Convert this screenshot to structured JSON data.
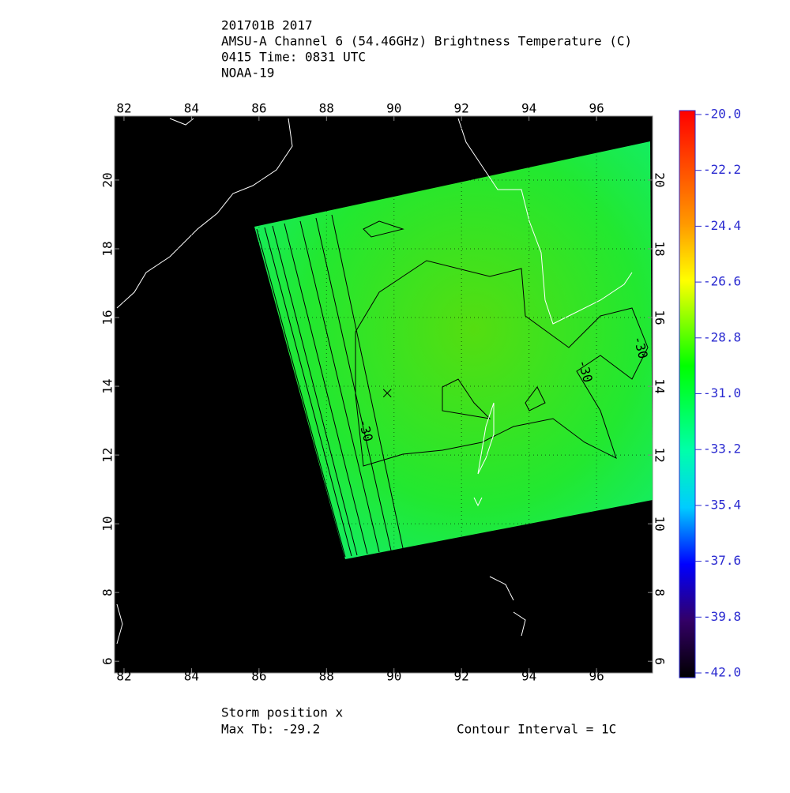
{
  "header": {
    "lines": [
      "201701B 2017",
      "AMSU-A Channel 6 (54.46GHz) Brightness Temperature (C)",
      "0415 Time: 0831 UTC",
      "NOAA-19"
    ]
  },
  "map": {
    "xlim": [
      81.72,
      97.66
    ],
    "ylim": [
      5.66,
      21.86
    ],
    "xticks": [
      82,
      84,
      86,
      88,
      90,
      92,
      94,
      96
    ],
    "yticks": [
      6,
      8,
      10,
      12,
      14,
      16,
      18,
      20
    ],
    "contour_labels": [
      "-30",
      "-30",
      "-30"
    ],
    "storm": {
      "lon": 89.8,
      "lat": 13.8
    }
  },
  "colorbar": {
    "lim": [
      -42,
      -20
    ],
    "ticks": [
      {
        "value": -20,
        "label": "-20.0"
      },
      {
        "value": -22.2,
        "label": "-22.2"
      },
      {
        "value": -24.4,
        "label": "-24.4"
      },
      {
        "value": -26.6,
        "label": "-26.6"
      },
      {
        "value": -28.8,
        "label": "-28.8"
      },
      {
        "value": -31,
        "label": "-31.0"
      },
      {
        "value": -33.2,
        "label": "-33.2"
      },
      {
        "value": -35.4,
        "label": "-35.4"
      },
      {
        "value": -37.6,
        "label": "-37.6"
      },
      {
        "value": -39.8,
        "label": "-39.8"
      },
      {
        "value": -42,
        "label": "-42.0"
      }
    ]
  },
  "footer": {
    "storm": "Storm position x",
    "max_tb": "Max Tb: -29.2",
    "contour": "Contour Interval = 1C"
  }
}
